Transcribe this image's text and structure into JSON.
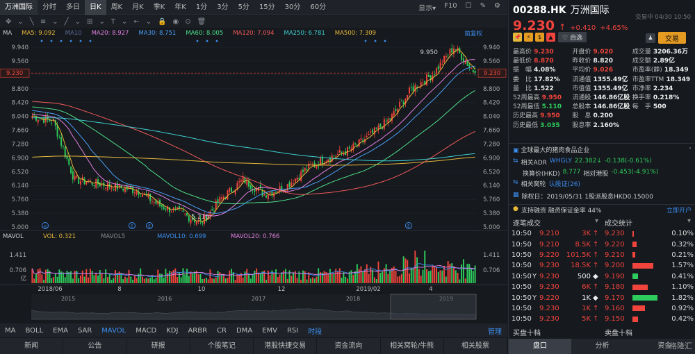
{
  "header": {
    "code": "00288.HK",
    "name": "万洲国际",
    "session": "交易中 04/30 10:50"
  },
  "topbar": {
    "tabs": [
      "万洲国际",
      "分时",
      "多日",
      "日K",
      "周K",
      "月K",
      "季K",
      "年K",
      "1分",
      "3分",
      "5分",
      "15分",
      "30分",
      "60分"
    ],
    "active_index": 3,
    "right": [
      "显示▾",
      "F10",
      "☐",
      "✎",
      "⚙"
    ]
  },
  "toolbar": {
    "items": [
      "✥",
      "⌄",
      "╲",
      "≡",
      "⌄",
      "╱",
      "⌄",
      "⊞",
      "⌄",
      "T",
      "⌄",
      "←",
      "⌄",
      "🔒",
      "◉",
      "⊙",
      "🗑"
    ]
  },
  "ma_legend": [
    {
      "label": "MA",
      "color": "#cccccc"
    },
    {
      "label": "MA5: 9.092",
      "color": "#e5b83a"
    },
    {
      "label": "MA10",
      "color": "#5a6a9a"
    },
    {
      "label": "MA20: 8.927",
      "color": "#e080e0"
    },
    {
      "label": "MA30: 8.751",
      "color": "#4a9ef5"
    },
    {
      "label": "MA60: 8.005",
      "color": "#4ee08a"
    },
    {
      "label": "MA120: 7.094",
      "color": "#f05a5a"
    },
    {
      "label": "MA250: 6.781",
      "color": "#3fd0d0"
    },
    {
      "label": "MA500: 7.309",
      "color": "#e5b83a"
    },
    {
      "label": "前复权",
      "color": "#3d8ef0"
    }
  ],
  "price_axis": [
    "9.940",
    "9.560",
    "9.180",
    "8.800",
    "8.420",
    "8.040",
    "7.660",
    "7.280",
    "6.900",
    "6.520",
    "6.140",
    "5.760",
    "5.380",
    "5.000"
  ],
  "current_price_tag": "9.230",
  "high_label": "9.950",
  "low_label": "5.110",
  "volume_legend": {
    "title": "MAVOL",
    "vol": "VOL: 0.321",
    "mavol5": "MAVOL5",
    "mavol10": "MAVOL10: 0.699",
    "mavol20": "MAVOL20: 0.766"
  },
  "volume_axis": [
    "1.411",
    "0.706",
    "亿"
  ],
  "date_axis": [
    "2018/06",
    "8",
    "10",
    "12",
    "2019/02",
    "4"
  ],
  "overview_years": [
    "2015",
    "2016",
    "2017",
    "2018",
    "2019"
  ],
  "indicators": {
    "items": [
      "MA",
      "BOLL",
      "EMA",
      "SAR",
      "MAVOL",
      "MACD",
      "KDJ",
      "ARBR",
      "CR",
      "DMA",
      "EMV",
      "RSI",
      "时段"
    ],
    "active": [
      "MAVOL",
      "时段"
    ],
    "manage": "管理"
  },
  "bottom_nav": [
    "新闻",
    "公告",
    "研报",
    "个股笔记",
    "港股快捷交易",
    "资金流向",
    "相关窝轮/牛熊",
    "相关股票"
  ],
  "quote": {
    "price": "9.230",
    "arrow": "↑",
    "change": "+0.410",
    "pct": "+4.65%",
    "watch": "自选",
    "trade": "交易",
    "icons": [
      "📌",
      "⚡",
      "$",
      "▲"
    ]
  },
  "stats": [
    [
      [
        "最高价",
        "9.230",
        "red"
      ],
      [
        "开盘价",
        "9.020",
        "red"
      ],
      [
        "成交量",
        "3206.36万",
        "white"
      ]
    ],
    [
      [
        "最低价",
        "8.870",
        "red"
      ],
      [
        "昨收价",
        "8.820",
        "white"
      ],
      [
        "成交额",
        "2.89亿",
        "white"
      ]
    ],
    [
      [
        "振　幅",
        "4.08%",
        "white"
      ],
      [
        "平均价",
        "9.026",
        "red"
      ],
      [
        "市盈率(静)",
        "18.349",
        "white"
      ]
    ],
    [
      [
        "委　比",
        "17.82%",
        "white"
      ],
      [
        "流通值",
        "1355.49亿",
        "white"
      ],
      [
        "市盈率TTM",
        "18.349",
        "white"
      ]
    ],
    [
      [
        "量　比",
        "1.522",
        "white"
      ],
      [
        "市值值",
        "1355.49亿",
        "white"
      ],
      [
        "市净率",
        "2.234",
        "white"
      ]
    ],
    [
      [
        "52周最高",
        "9.950",
        "red"
      ],
      [
        "流通股",
        "146.86亿股",
        "white"
      ],
      [
        "换手率",
        "0.218%",
        "white"
      ]
    ],
    [
      [
        "52周最低",
        "5.110",
        "green"
      ],
      [
        "总股本",
        "146.86亿股",
        "white"
      ],
      [
        "每　手",
        "500",
        "white"
      ]
    ],
    [
      [
        "历史最高",
        "9.950",
        "red"
      ],
      [
        "股　息",
        "0.200",
        "white"
      ],
      [
        "",
        "",
        " "
      ]
    ],
    [
      [
        "历史最低",
        "3.035",
        "green"
      ],
      [
        "股息率",
        "2.160%",
        "white"
      ],
      [
        "",
        "",
        " "
      ]
    ]
  ],
  "info": {
    "tag": "全球最大的猪肉食品企业",
    "adr_label": "相关ADR",
    "adr_code": "WHGLY",
    "adr_price": "22.382↓",
    "adr_change": "-0.138(-0.61%)",
    "conv_label": "换算价(HKD)",
    "conv_price": "8.777",
    "conv_rel_label": "相对港股",
    "conv_rel": "-0.453(-4.91%)",
    "warrant_label": "相关窝轮",
    "warrant_link": "认股证(26)",
    "exdiv": "除权日：2019/05/31  1股派股息HKD0.15000",
    "margin": "支持融资  融资保证金率 44%",
    "open_link": "立即开户"
  },
  "ticks": {
    "title": "逐笔成交",
    "rows": [
      [
        "10:50",
        "",
        "9.210",
        "3K",
        "↑",
        "red"
      ],
      [
        "10:50",
        "",
        "9.210",
        "8.5K",
        "↑",
        "red"
      ],
      [
        "10:50",
        "",
        "9.220",
        "101.5K",
        "↑",
        "red"
      ],
      [
        "10:50",
        "",
        "9.230",
        "18.5K",
        "↑",
        "red"
      ],
      [
        "10:50",
        "Y",
        "9.230",
        "500",
        "◆",
        "white"
      ],
      [
        "10:50",
        "",
        "9.230",
        "6K",
        "↑",
        "red"
      ],
      [
        "10:50",
        "Y",
        "9.220",
        "1K",
        "◆",
        "white"
      ],
      [
        "10:50",
        "",
        "9.230",
        "1K",
        "↑",
        "red"
      ],
      [
        "10:50",
        "",
        "9.230",
        "5K",
        "↑",
        "red"
      ]
    ]
  },
  "stat_table": {
    "title": "成交统计",
    "rows": [
      [
        "9.230",
        "0.10%",
        "red",
        0.05
      ],
      [
        "9.220",
        "0.32%",
        "red",
        0.15
      ],
      [
        "9.210",
        "0.21%",
        "red",
        0.1
      ],
      [
        "9.200",
        "1.57%",
        "red",
        0.75
      ],
      [
        "9.190",
        "0.41%",
        "green",
        0.2
      ],
      [
        "9.180",
        "1.10%",
        "red",
        0.55
      ],
      [
        "9.170",
        "1.82%",
        "green",
        0.9
      ],
      [
        "9.160",
        "0.92%",
        "red",
        0.45
      ],
      [
        "9.150",
        "0.42%",
        "red",
        0.2
      ]
    ]
  },
  "bid_ask": {
    "buy": "买盘十档",
    "sell": "卖盘十档"
  },
  "right_nav": [
    "盘口",
    "分析",
    "资金"
  ],
  "watermark": "格隆汇",
  "chart_data": {
    "type": "candlestick",
    "x_start": "2018/05",
    "x_end": "2019/04/30",
    "ylim": [
      5.0,
      9.94
    ],
    "ma_values": {
      "MA5": 9.092,
      "MA20": 8.927,
      "MA30": 8.751,
      "MA60": 8.005,
      "MA120": 7.094,
      "MA250": 6.781,
      "MA500": 7.309
    },
    "key_prices": [
      8.05,
      7.9,
      6.3,
      6.2,
      6.1,
      6.0,
      5.6,
      5.4,
      5.11,
      5.8,
      6.3,
      5.9,
      6.1,
      6.6,
      6.9,
      7.1,
      7.5,
      8.0,
      8.8,
      9.2,
      9.95,
      9.23
    ],
    "last": 9.23,
    "high52": 9.95,
    "low52": 5.11
  }
}
